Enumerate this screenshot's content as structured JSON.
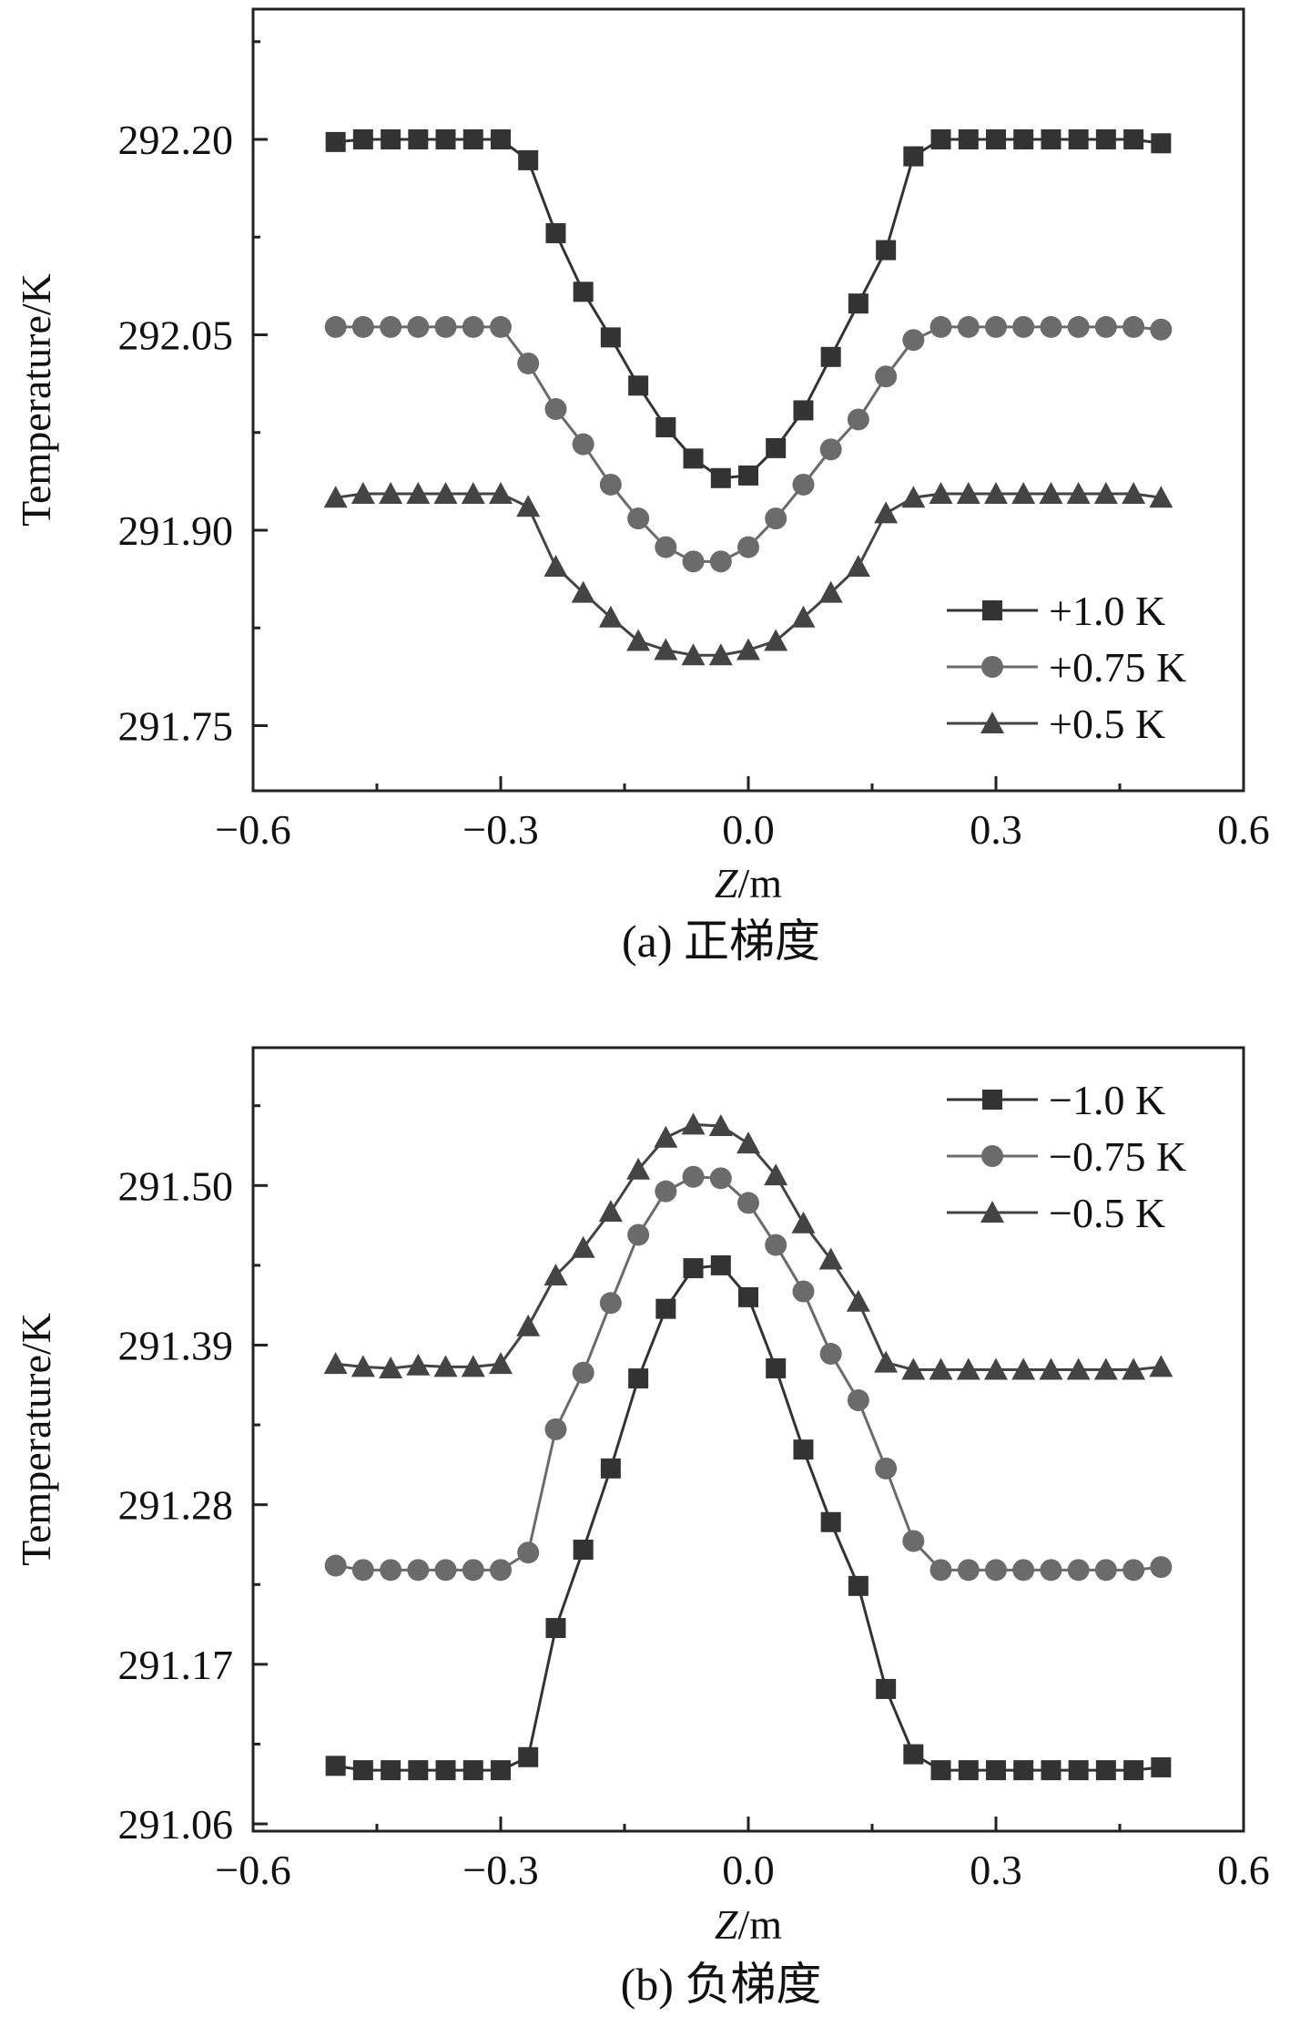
{
  "chart_data": [
    {
      "type": "line",
      "title": "",
      "caption": "(a) 正梯度",
      "xlabel_italic": "Z",
      "xlabel_unit": "/m",
      "ylabel": "Temperature/K",
      "xlim": [
        -0.6,
        0.6
      ],
      "ylim": [
        291.7,
        292.3
      ],
      "xticks": [
        -0.6,
        -0.3,
        0.0,
        0.3,
        0.6
      ],
      "xtick_labels": [
        "−0.6",
        "−0.3",
        "0.0",
        "0.3",
        "0.6"
      ],
      "yticks": [
        291.75,
        291.9,
        292.05,
        292.2
      ],
      "ytick_labels": [
        "291.75",
        "291.90",
        "292.05",
        "292.20"
      ],
      "grid": false,
      "legend_position": "bottom-right",
      "x": [
        -0.5,
        -0.4667,
        -0.4333,
        -0.4,
        -0.3667,
        -0.3333,
        -0.3,
        -0.2667,
        -0.2333,
        -0.2,
        -0.1667,
        -0.1333,
        -0.1,
        -0.0667,
        -0.0333,
        0.0,
        0.0333,
        0.0667,
        0.1,
        0.1333,
        0.1667,
        0.2,
        0.2333,
        0.2667,
        0.3,
        0.3333,
        0.3667,
        0.4,
        0.4333,
        0.4667,
        0.5
      ],
      "series": [
        {
          "name": "+1.0 K",
          "marker": "square",
          "color": "#333333",
          "x": [
            -0.5,
            -0.4667,
            -0.4333,
            -0.4,
            -0.3667,
            -0.3333,
            -0.3,
            -0.2667,
            -0.2333,
            -0.2,
            -0.1667,
            -0.1333,
            -0.1,
            -0.0667,
            -0.0333,
            0.0,
            0.0333,
            0.0667,
            0.1,
            0.1333,
            0.1667,
            0.2,
            0.2333,
            0.2667,
            0.3,
            0.3333,
            0.3667,
            0.4,
            0.4333,
            0.4667,
            0.5
          ],
          "values": [
            292.198,
            292.2,
            292.2,
            292.2,
            292.2,
            292.2,
            292.2,
            292.184,
            292.128,
            292.083,
            292.048,
            292.011,
            291.979,
            291.955,
            291.94,
            291.942,
            291.963,
            291.992,
            292.033,
            292.074,
            292.115,
            292.187,
            292.2,
            292.2,
            292.2,
            292.2,
            292.2,
            292.2,
            292.2,
            292.2,
            292.197
          ]
        },
        {
          "name": "+0.75 K",
          "marker": "circle",
          "color": "#6b6b6b",
          "x": [
            -0.5,
            -0.4667,
            -0.4333,
            -0.4,
            -0.3667,
            -0.3333,
            -0.3,
            -0.2667,
            -0.2333,
            -0.2,
            -0.1667,
            -0.1333,
            -0.1,
            -0.0667,
            -0.0333,
            0.0,
            0.0333,
            0.0667,
            0.1,
            0.1333,
            0.1667,
            0.2,
            0.2333,
            0.2667,
            0.3,
            0.3333,
            0.3667,
            0.4,
            0.4333,
            0.4667,
            0.5
          ],
          "values": [
            292.056,
            292.056,
            292.056,
            292.056,
            292.056,
            292.056,
            292.056,
            292.028,
            291.993,
            291.966,
            291.935,
            291.909,
            291.887,
            291.876,
            291.876,
            291.887,
            291.909,
            291.935,
            291.962,
            291.985,
            292.018,
            292.046,
            292.056,
            292.056,
            292.056,
            292.056,
            292.056,
            292.056,
            292.056,
            292.056,
            292.054
          ],
          "values_note": ""
        },
        {
          "name": "+0.5 K",
          "marker": "triangle",
          "color": "#444444",
          "x": [
            -0.5,
            -0.4667,
            -0.4333,
            -0.4,
            -0.3667,
            -0.3333,
            -0.3,
            -0.2667,
            -0.2333,
            -0.2,
            -0.1667,
            -0.1333,
            -0.1,
            -0.0667,
            -0.0333,
            0.0,
            0.0333,
            0.0667,
            0.1,
            0.1333,
            0.1667,
            0.2,
            0.2333,
            0.2667,
            0.3,
            0.3333,
            0.3667,
            0.4,
            0.4333,
            0.4667,
            0.5
          ],
          "values": [
            291.925,
            291.928,
            291.928,
            291.928,
            291.928,
            291.928,
            291.928,
            291.918,
            291.872,
            291.852,
            291.833,
            291.815,
            291.808,
            291.804,
            291.804,
            291.808,
            291.815,
            291.833,
            291.852,
            291.872,
            291.913,
            291.925,
            291.928,
            291.928,
            291.928,
            291.928,
            291.928,
            291.928,
            291.928,
            291.928,
            291.925
          ]
        }
      ]
    },
    {
      "type": "line",
      "title": "",
      "caption": "(b) 负梯度",
      "xlabel_italic": "Z",
      "xlabel_unit": "/m",
      "ylabel": "Temperature/K",
      "xlim": [
        -0.6,
        0.6
      ],
      "ylim": [
        291.055,
        291.595
      ],
      "xticks": [
        -0.6,
        -0.3,
        0.0,
        0.3,
        0.6
      ],
      "xtick_labels": [
        "−0.6",
        "−0.3",
        "0.0",
        "0.3",
        "0.6"
      ],
      "yticks": [
        291.06,
        291.17,
        291.28,
        291.39,
        291.5
      ],
      "ytick_labels": [
        "291.06",
        "291.17",
        "291.28",
        "291.39",
        "291.50"
      ],
      "grid": false,
      "legend_position": "top-right",
      "series": [
        {
          "name": "−1.0 K",
          "marker": "square",
          "color": "#333333",
          "x": [
            -0.5,
            -0.4667,
            -0.4333,
            -0.4,
            -0.3667,
            -0.3333,
            -0.3,
            -0.2667,
            -0.2333,
            -0.2,
            -0.1667,
            -0.1333,
            -0.1,
            -0.0667,
            -0.0333,
            0.0,
            0.0333,
            0.0667,
            0.1,
            0.1333,
            0.1667,
            0.2,
            0.2333,
            0.2667,
            0.3,
            0.3333,
            0.3667,
            0.4,
            0.4333,
            0.4667,
            0.5
          ],
          "values": [
            291.1,
            291.097,
            291.097,
            291.097,
            291.097,
            291.097,
            291.097,
            291.106,
            291.195,
            291.249,
            291.305,
            291.367,
            291.415,
            291.443,
            291.445,
            291.423,
            291.374,
            291.318,
            291.268,
            291.224,
            291.153,
            291.108,
            291.097,
            291.097,
            291.097,
            291.097,
            291.097,
            291.097,
            291.097,
            291.097,
            291.099
          ]
        },
        {
          "name": "−0.75 K",
          "marker": "circle",
          "color": "#6b6b6b",
          "x": [
            -0.5,
            -0.4667,
            -0.4333,
            -0.4,
            -0.3667,
            -0.3333,
            -0.3,
            -0.2667,
            -0.2333,
            -0.2,
            -0.1667,
            -0.1333,
            -0.1,
            -0.0667,
            -0.0333,
            0.0,
            0.0333,
            0.0667,
            0.1,
            0.1333,
            0.1667,
            0.2,
            0.2333,
            0.2667,
            0.3,
            0.3333,
            0.3667,
            0.4,
            0.4333,
            0.4667,
            0.5
          ],
          "values": [
            291.238,
            291.235,
            291.235,
            291.235,
            291.235,
            291.235,
            291.235,
            291.247,
            291.332,
            291.371,
            291.419,
            291.466,
            291.496,
            291.506,
            291.505,
            291.488,
            291.459,
            291.427,
            291.384,
            291.352,
            291.305,
            291.255,
            291.235,
            291.235,
            291.235,
            291.235,
            291.235,
            291.235,
            291.235,
            291.235,
            291.237
          ]
        },
        {
          "name": "−0.5 K",
          "marker": "triangle",
          "color": "#444444",
          "x": [
            -0.5,
            -0.4667,
            -0.4333,
            -0.4,
            -0.3667,
            -0.3333,
            -0.3,
            -0.2667,
            -0.2333,
            -0.2,
            -0.1667,
            -0.1333,
            -0.1,
            -0.0667,
            -0.0333,
            0.0,
            0.0333,
            0.0667,
            0.1,
            0.1333,
            0.1667,
            0.2,
            0.2333,
            0.2667,
            0.3,
            0.3333,
            0.3667,
            0.4,
            0.4333,
            0.4667,
            0.5
          ],
          "values": [
            291.377,
            291.375,
            291.374,
            291.376,
            291.375,
            291.375,
            291.377,
            291.403,
            291.438,
            291.457,
            291.482,
            291.511,
            291.533,
            291.542,
            291.541,
            291.529,
            291.507,
            291.474,
            291.449,
            291.42,
            291.378,
            291.373,
            291.373,
            291.373,
            291.373,
            291.373,
            291.373,
            291.373,
            291.373,
            291.373,
            291.375
          ]
        }
      ]
    }
  ]
}
